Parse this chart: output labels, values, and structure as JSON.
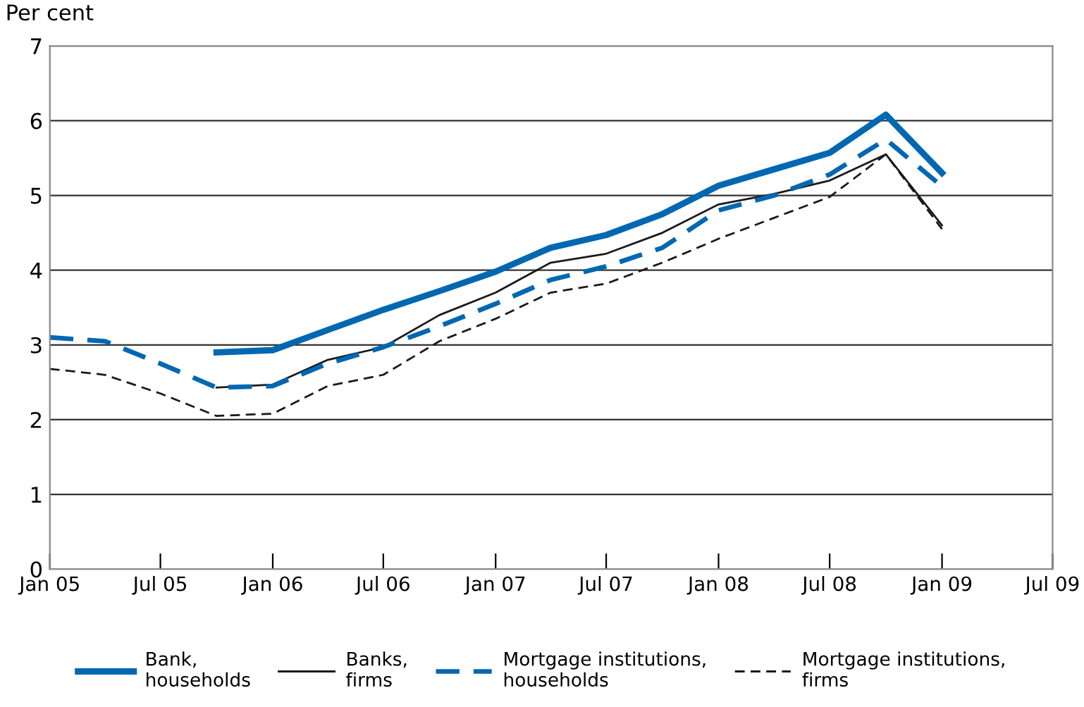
{
  "chart_data": {
    "type": "line",
    "ylabel": "Per cent",
    "x": [
      "2005-01",
      "2005-04",
      "2005-07",
      "2005-10",
      "2006-01",
      "2006-04",
      "2006-07",
      "2006-10",
      "2007-01",
      "2007-04",
      "2007-07",
      "2007-10",
      "2008-01",
      "2008-04",
      "2008-07",
      "2008-10",
      "2009-01"
    ],
    "series": [
      {
        "name": "Bank,\nhouseholds",
        "color": "#0067b1",
        "line_style": "solid",
        "values": [
          null,
          null,
          null,
          2.9,
          2.93,
          3.2,
          3.47,
          3.72,
          3.98,
          4.3,
          4.47,
          4.75,
          5.13,
          5.35,
          5.57,
          6.08,
          5.3
        ]
      },
      {
        "name": "Banks,\nfirms",
        "color": "#1a1a1a",
        "line_style": "solid",
        "values": [
          null,
          null,
          null,
          2.43,
          2.47,
          2.8,
          2.97,
          3.4,
          3.7,
          4.1,
          4.22,
          4.5,
          4.88,
          5.02,
          5.2,
          5.55,
          4.6
        ]
      },
      {
        "name": "Mortgage institutions,\nhouseholds",
        "color": "#0067b1",
        "line_style": "dashed",
        "values": [
          3.1,
          3.05,
          2.75,
          2.43,
          2.45,
          2.75,
          2.97,
          3.25,
          3.55,
          3.87,
          4.05,
          4.3,
          4.8,
          5.0,
          5.28,
          5.75,
          5.12
        ]
      },
      {
        "name": "Mortgage institutions,\nfirms",
        "color": "#1a1a1a",
        "line_style": "dashed",
        "values": [
          2.68,
          2.6,
          2.35,
          2.05,
          2.08,
          2.45,
          2.6,
          3.05,
          3.35,
          3.7,
          3.82,
          4.1,
          4.42,
          4.7,
          4.98,
          5.55,
          4.55
        ]
      }
    ],
    "xlim": [
      "2005-01",
      "2009-07"
    ],
    "xticks": [
      {
        "value": "2005-01",
        "label": "Jan 05"
      },
      {
        "value": "2005-07",
        "label": "Jul 05"
      },
      {
        "value": "2006-01",
        "label": "Jan 06"
      },
      {
        "value": "2006-07",
        "label": "Jul 06"
      },
      {
        "value": "2007-01",
        "label": "Jan 07"
      },
      {
        "value": "2007-07",
        "label": "Jul 07"
      },
      {
        "value": "2008-01",
        "label": "Jan 08"
      },
      {
        "value": "2008-07",
        "label": "Jul 08"
      },
      {
        "value": "2009-01",
        "label": "Jan 09"
      },
      {
        "value": "2009-07",
        "label": "Jul 09"
      }
    ],
    "ylim": [
      0,
      7
    ],
    "yticks": [
      0,
      1,
      2,
      3,
      4,
      5,
      6,
      7
    ],
    "grid": "y",
    "legend": "bottom",
    "marker": "none"
  }
}
